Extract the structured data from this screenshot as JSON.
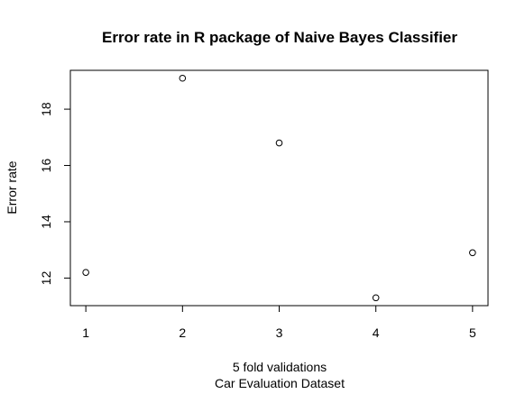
{
  "chart_data": {
    "type": "scatter",
    "title": "Error rate in R package of Naive Bayes Classifier",
    "xlabel": "5 fold validations",
    "xlabel_line2": "Car Evaluation Dataset",
    "ylabel": "Error rate",
    "x": [
      1,
      2,
      3,
      4,
      5
    ],
    "y": [
      12.2,
      19.1,
      16.8,
      11.3,
      12.9
    ],
    "xticks": [
      "1",
      "2",
      "3",
      "4",
      "5"
    ],
    "yticks": [
      "12",
      "14",
      "16",
      "18"
    ],
    "xlim": [
      0.84,
      5.16
    ],
    "ylim": [
      11.02,
      19.38
    ],
    "grid": false,
    "marker": "open-circle"
  }
}
